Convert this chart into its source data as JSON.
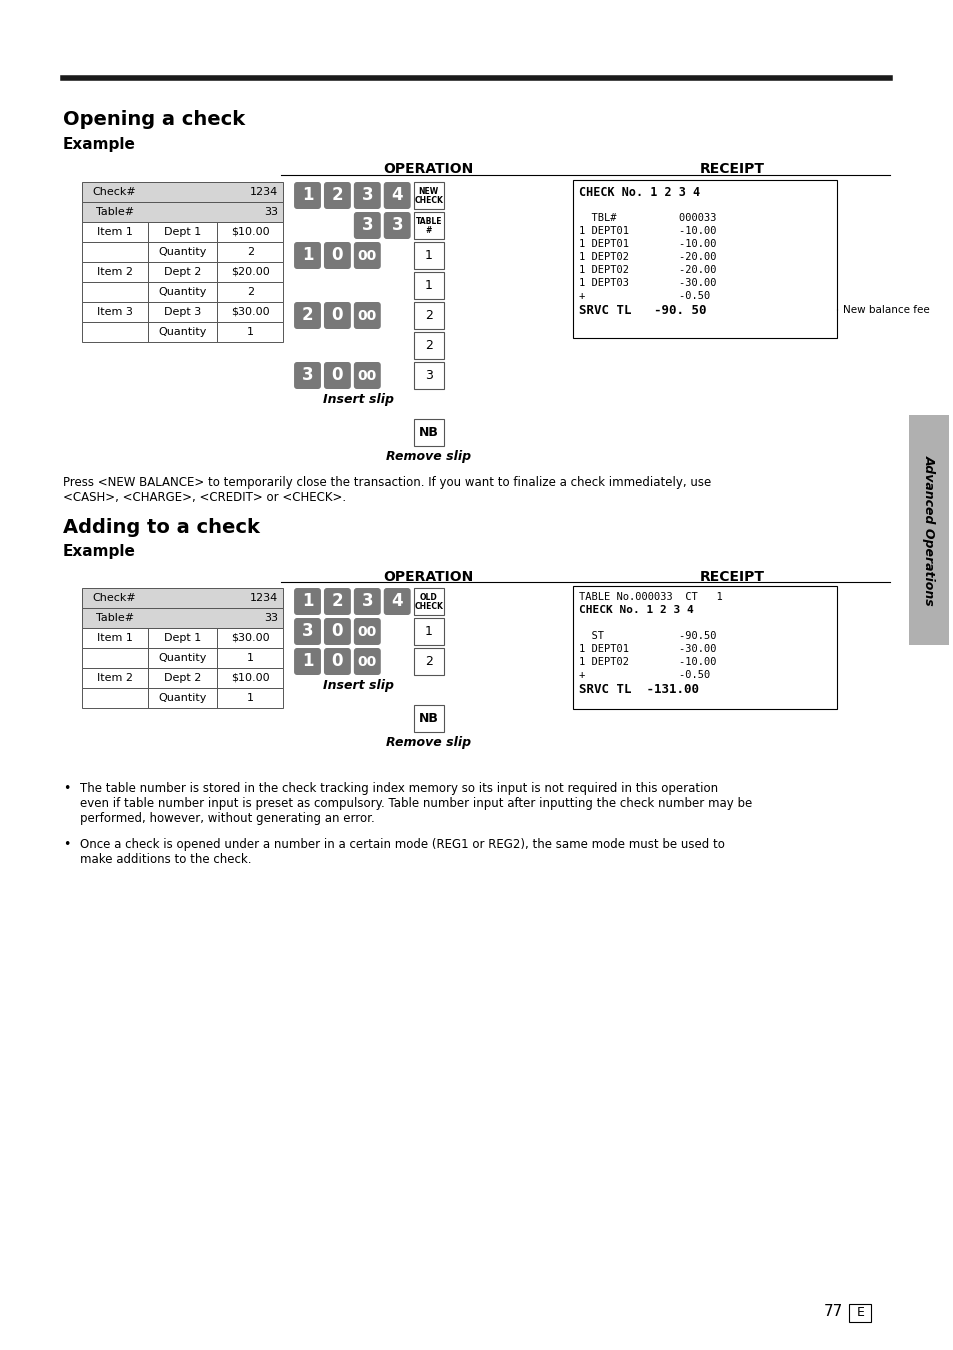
{
  "page_bg": "#ffffff",
  "section1_title": "Opening a check",
  "section1_example": "Example",
  "section2_title": "Adding to a check",
  "section2_example": "Example",
  "operation_label": "OPERATION",
  "receipt_label": "RECEIPT",
  "footer_text1": "The table number is stored in the check tracking index memory so its input is not required in this operation",
  "footer_text1b": "even if table number input is preset as compulsory. Table number input after inputting the check number may be",
  "footer_text1c": "performed, however, without generating an error.",
  "footer_text2": "Once a check is opened under a number in a certain mode (REG1 or REG2), the same mode must be used to",
  "footer_text2b": "make additions to the check.",
  "page_num": "77",
  "side_tab_text": "Advanced Operations",
  "new_balance_note": "New balance fee",
  "para_text1": "Press <NEW BALANCE> to temporarily close the transaction. If you want to finalize a check immediately, use",
  "para_text2": "<CASH>, <CHARGE>, <CREDIT> or <CHECK>."
}
